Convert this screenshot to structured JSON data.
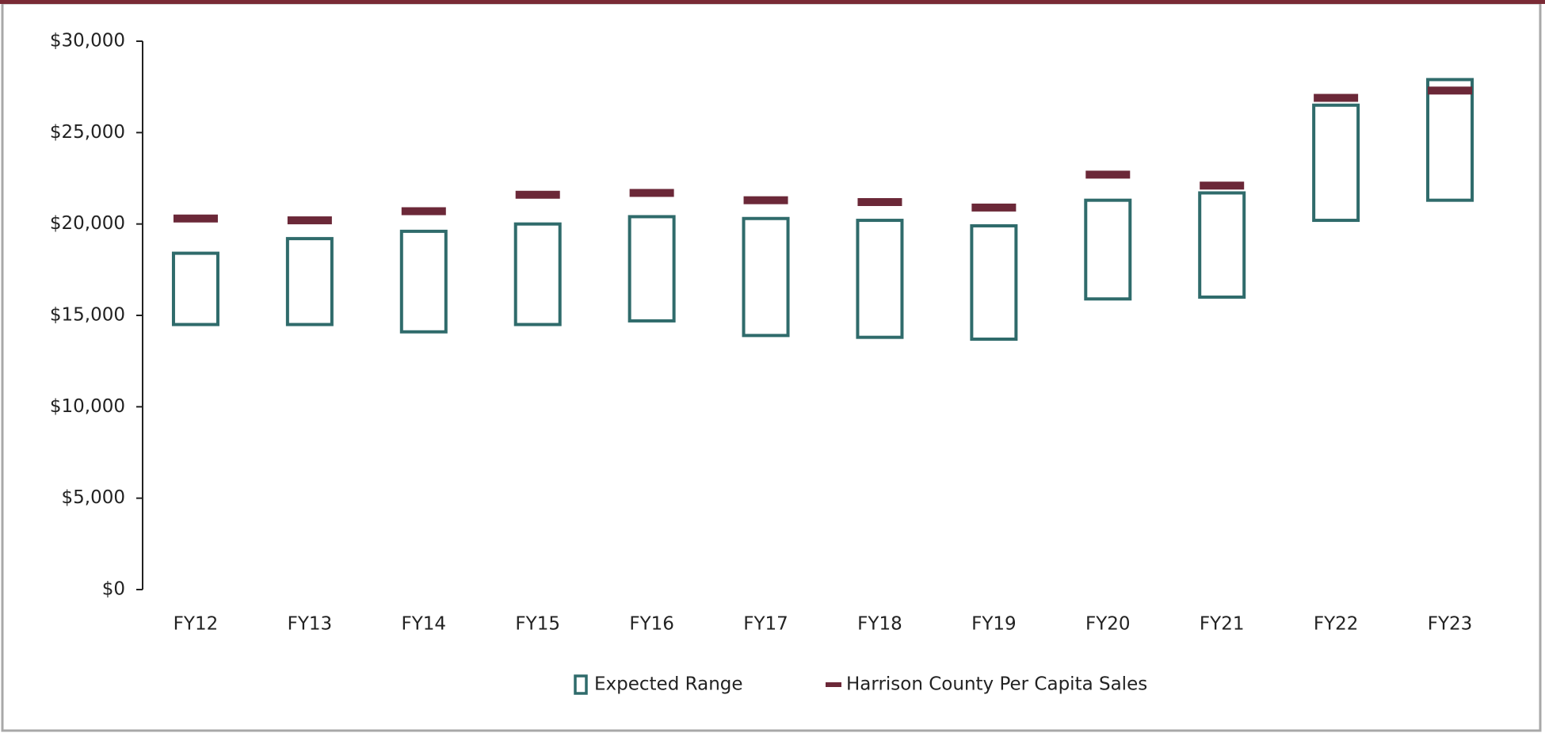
{
  "chart_data": {
    "type": "floating-bar",
    "categories": [
      "FY12",
      "FY13",
      "FY14",
      "FY15",
      "FY16",
      "FY17",
      "FY18",
      "FY19",
      "FY20",
      "FY21",
      "FY22",
      "FY23"
    ],
    "series": [
      {
        "name": "Expected Range",
        "color": "#2f6b6b",
        "low": [
          14500,
          14500,
          14100,
          14500,
          14700,
          13900,
          13800,
          13700,
          15900,
          16000,
          20200,
          21300
        ],
        "high": [
          18400,
          19200,
          19600,
          20000,
          20400,
          20300,
          20200,
          19900,
          21300,
          21700,
          26500,
          27900
        ]
      },
      {
        "name": "Harrison County Per Capita Sales",
        "color": "#6b2838",
        "values": [
          20300,
          20200,
          20700,
          21600,
          21700,
          21300,
          21200,
          20900,
          22700,
          22100,
          26900,
          27300
        ]
      }
    ],
    "ylim": [
      0,
      30000
    ],
    "yticks": [
      {
        "value": 0,
        "label": "$0"
      },
      {
        "value": 5000,
        "label": "$5,000"
      },
      {
        "value": 10000,
        "label": "$10,000"
      },
      {
        "value": 15000,
        "label": "$15,000"
      },
      {
        "value": 20000,
        "label": "$20,000"
      },
      {
        "value": 25000,
        "label": "$25,000"
      },
      {
        "value": 30000,
        "label": "$30,000"
      }
    ],
    "legend": "bottom"
  }
}
